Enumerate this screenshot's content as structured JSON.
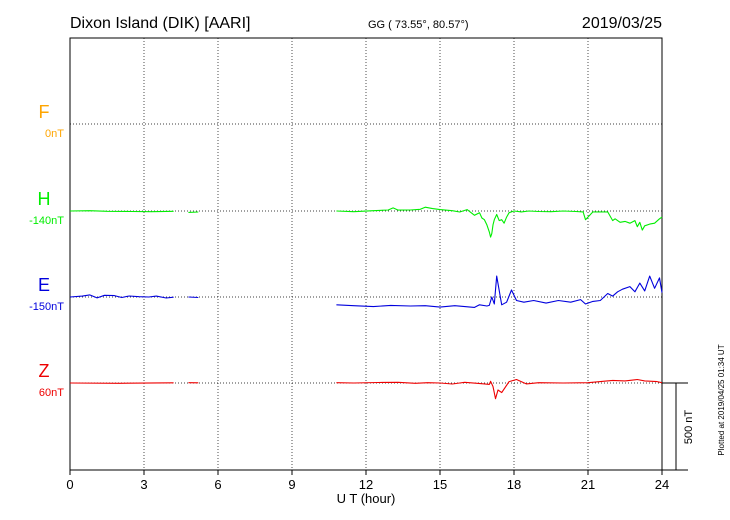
{
  "chart_data": {
    "type": "line",
    "title": "Dixon Island (DIK)  [AARI]",
    "coords": "GG ( 73.55°,  80.57°)",
    "date": "2019/03/25",
    "xlabel": "U T (hour)",
    "xlim": [
      0,
      24
    ],
    "x_ticks": [
      "0",
      "3",
      "6",
      "9",
      "12",
      "15",
      "18",
      "21",
      "24"
    ],
    "grid": true,
    "scale_bar_label": "500 nT",
    "scale_bar_value_nT": 500,
    "plotted_note": "Plotted at 2019/04/25 01:34 UT",
    "series": [
      {
        "name": "F",
        "baseline": "0nT",
        "color": "#ffa500",
        "x": [],
        "y": []
      },
      {
        "name": "H",
        "baseline": "-140nT",
        "color": "#00ee00",
        "x": [
          0,
          0.8,
          1.5,
          2.5,
          3.3,
          4.2,
          4.4,
          4.8,
          5.2,
          null,
          10.8,
          11.5,
          12.3,
          12.9,
          13.1,
          13.3,
          13.8,
          14.2,
          14.4,
          14.7,
          15,
          15.5,
          15.8,
          16.1,
          16.4,
          16.6,
          16.7,
          16.8,
          16.9,
          17,
          17.05,
          17.1,
          17.15,
          17.2,
          17.3,
          17.4,
          17.5,
          17.6,
          17.7,
          17.8,
          18,
          18.3,
          18.6,
          19,
          19.5,
          20,
          20.5,
          20.8,
          20.9,
          21.2,
          21.5,
          21.8,
          22,
          22.1,
          22.3,
          22.5,
          22.7,
          22.9,
          23,
          23.1,
          23.2,
          23.3,
          23.5,
          23.7,
          23.9,
          24
        ],
        "y": [
          0,
          2,
          -2,
          -3,
          -4,
          -2,
          null,
          -8,
          -6,
          null,
          0,
          -4,
          2,
          6,
          18,
          5,
          6,
          10,
          22,
          14,
          8,
          2,
          -6,
          8,
          -25,
          -10,
          -40,
          -50,
          -80,
          -120,
          -150,
          -130,
          -80,
          -50,
          -20,
          -55,
          -50,
          -70,
          -35,
          -10,
          0,
          -5,
          0,
          -3,
          -4,
          0,
          -3,
          -5,
          -50,
          -5,
          -5,
          -5,
          -55,
          -45,
          -65,
          -60,
          -70,
          -55,
          -90,
          -65,
          -110,
          -85,
          -75,
          -70,
          -45,
          -35
        ]
      },
      {
        "name": "E",
        "baseline": "-150nT",
        "color": "#0000dd",
        "x": [
          0,
          0.5,
          0.8,
          1.1,
          1.4,
          1.8,
          2.1,
          2.4,
          2.8,
          3.2,
          3.5,
          3.9,
          4.2,
          null,
          4.8,
          5.2,
          null,
          10.8,
          11.5,
          12.3,
          13,
          13.8,
          14.4,
          15,
          15.6,
          16,
          16.4,
          16.6,
          16.9,
          17,
          17.1,
          17.2,
          17.3,
          17.5,
          17.7,
          17.9,
          18.1,
          18.4,
          18.8,
          19.3,
          19.8,
          20.3,
          20.7,
          20.9,
          21.2,
          21.5,
          21.8,
          22,
          22.2,
          22.4,
          22.7,
          22.9,
          23.1,
          23.3,
          23.5,
          23.7,
          23.9,
          24
        ],
        "y": [
          0,
          5,
          12,
          -5,
          10,
          8,
          -3,
          6,
          2,
          0,
          5,
          -6,
          -1,
          null,
          0,
          -3,
          null,
          -45,
          -50,
          -55,
          -48,
          -52,
          -50,
          -58,
          -50,
          -55,
          -60,
          -45,
          -52,
          -48,
          0,
          -40,
          120,
          -45,
          -30,
          40,
          -20,
          -30,
          -20,
          -35,
          -20,
          -30,
          -15,
          -40,
          -25,
          -20,
          20,
          5,
          30,
          45,
          60,
          30,
          80,
          35,
          120,
          50,
          110,
          25
        ]
      },
      {
        "name": "Z",
        "baseline": "60nT",
        "color": "#ee0000",
        "x": [
          0,
          2,
          4.2,
          null,
          4.8,
          5.2,
          null,
          10.8,
          11.5,
          12.5,
          13.3,
          14,
          14.5,
          15,
          15.5,
          15.8,
          16,
          16.5,
          16.8,
          17,
          17.05,
          17.15,
          17.25,
          17.35,
          17.5,
          17.8,
          18.1,
          18.5,
          19,
          20,
          21,
          21.5,
          22,
          22.5,
          23,
          23.3,
          23.6,
          23.8,
          24
        ],
        "y": [
          0,
          -2,
          1,
          null,
          2,
          1,
          null,
          2,
          0,
          3,
          4,
          -2,
          2,
          0,
          -6,
          0,
          4,
          -2,
          -5,
          -8,
          10,
          -20,
          -90,
          -40,
          -55,
          8,
          20,
          -5,
          2,
          0,
          2,
          8,
          15,
          12,
          20,
          12,
          10,
          8,
          2
        ]
      }
    ]
  }
}
